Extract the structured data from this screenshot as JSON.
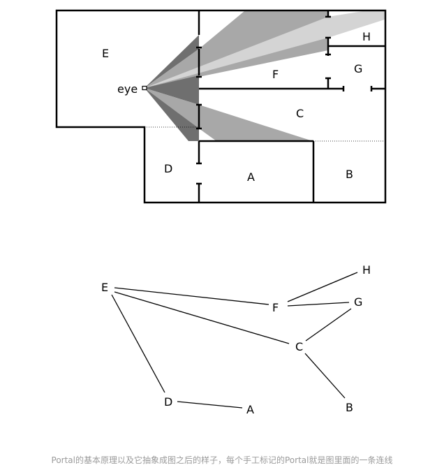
{
  "floorplan": {
    "rooms": [
      "E",
      "F",
      "G",
      "H",
      "C",
      "D",
      "A",
      "B"
    ],
    "eye_label": "eye"
  },
  "graph": {
    "nodes": [
      "E",
      "F",
      "G",
      "H",
      "C",
      "D",
      "A",
      "B"
    ],
    "edges": [
      [
        "E",
        "F"
      ],
      [
        "E",
        "C"
      ],
      [
        "E",
        "D"
      ],
      [
        "F",
        "H"
      ],
      [
        "F",
        "G"
      ],
      [
        "C",
        "G"
      ],
      [
        "C",
        "B"
      ],
      [
        "D",
        "A"
      ]
    ]
  },
  "caption": "Portal的基本原理以及它抽象成图之后的样子，每个手工标记的Portal就是图里面的一条连线",
  "colors": {
    "cone_dark": "#6f6f6f",
    "cone_mid": "#a8a8a8",
    "cone_light": "#d4d4d4",
    "caption": "#9a9a9a"
  }
}
